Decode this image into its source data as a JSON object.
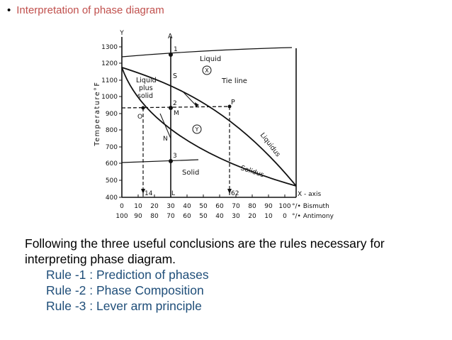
{
  "header": {
    "bullet_text": "Interpretation of phase diagram"
  },
  "diagram": {
    "ylabel": "Temperature°F",
    "y_axis_letter": "Y",
    "y_ticks": [
      "1300",
      "1200",
      "1100",
      "1000",
      "900",
      "800",
      "700",
      "600",
      "500",
      "400"
    ],
    "x_ticks_bismuth": [
      "0",
      "10",
      "20",
      "30",
      "40",
      "50",
      "60",
      "70",
      "80",
      "90",
      "100"
    ],
    "x_ticks_antimony": [
      "100",
      "90",
      "80",
      "70",
      "60",
      "50",
      "40",
      "30",
      "20",
      "10",
      "0"
    ],
    "bismuth_label": "°/• Bismuth",
    "antimony_label": "°/• Antimony",
    "x_axis_label": "X - axis",
    "region_liquid": "Liquid",
    "region_liquid_marker": "X",
    "region_liquid_plus_solid": [
      "Liquid",
      "plus",
      "solid"
    ],
    "region_solid": "Solid",
    "region_y_marker": "Y",
    "tie_line_label": "Tie line",
    "liquidus_label": "Liquidus",
    "solidus_label": "Solidus",
    "points": {
      "A": "A",
      "one": "1",
      "S": "S",
      "two": "2",
      "M": "M",
      "O": "O",
      "P": "P",
      "N": "N",
      "three": "3",
      "L": "L",
      "fourteen": "14",
      "sixtytwo": "62"
    }
  },
  "text": {
    "intro": "Following  the three useful conclusions are the rules necessary for interpreting phase diagram.",
    "rules": [
      "Rule -1 : Prediction of phases",
      "Rule -2 : Phase Composition",
      "Rule -3 : Lever arm principle"
    ]
  },
  "colors": {
    "bullet_text": "#c0504d",
    "rules_text": "#1f4e79"
  }
}
